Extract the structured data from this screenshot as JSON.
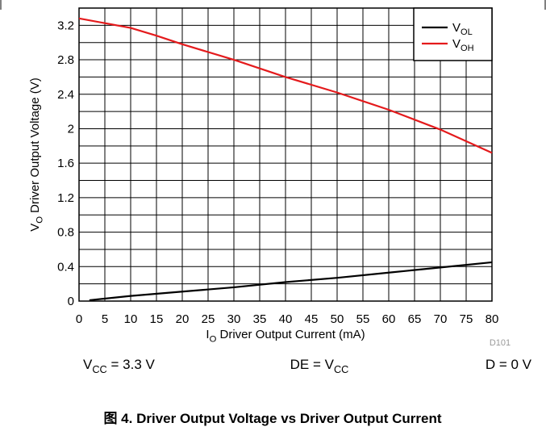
{
  "chart_data": {
    "type": "line",
    "ylabel": [
      {
        "text": "V"
      },
      {
        "text": "O",
        "sub": true
      },
      {
        "text": " Driver Output Voltage (V)"
      }
    ],
    "xlabel": [
      {
        "text": "I"
      },
      {
        "text": "O",
        "sub": true
      },
      {
        "text": " Driver Output Current (mA)"
      }
    ],
    "xlim": [
      0,
      80
    ],
    "xticks": [
      0,
      5,
      10,
      15,
      20,
      25,
      30,
      35,
      40,
      45,
      50,
      55,
      60,
      65,
      70,
      75,
      80
    ],
    "ylim": [
      0,
      3.4
    ],
    "yticks": [
      0,
      0.4,
      0.8,
      1.2,
      1.6,
      2,
      2.4,
      2.8,
      3.2
    ],
    "grid": true,
    "legend": "top-right",
    "series": [
      {
        "name": "V",
        "name_sub": "OL",
        "color": "#000000",
        "x": [
          2,
          10,
          20,
          30,
          40,
          50,
          60,
          70,
          80
        ],
        "values": [
          0.01,
          0.06,
          0.11,
          0.16,
          0.22,
          0.27,
          0.33,
          0.39,
          0.45
        ]
      },
      {
        "name": "V",
        "name_sub": "OH",
        "color": "#e41a1c",
        "x": [
          0,
          10,
          15,
          20,
          30,
          40,
          50,
          60,
          70,
          80
        ],
        "values": [
          3.28,
          3.17,
          3.08,
          2.98,
          2.8,
          2.6,
          2.42,
          2.22,
          1.99,
          1.72
        ]
      }
    ],
    "figure_id": "D101",
    "conditions": [
      [
        {
          "text": "V"
        },
        {
          "text": "CC",
          "sub": true
        },
        {
          "text": " = 3.3 V"
        }
      ],
      [
        {
          "text": "DE = V"
        },
        {
          "text": "CC",
          "sub": true
        }
      ],
      [
        {
          "text": "D = 0 V"
        }
      ]
    ],
    "caption": "图 4. Driver Output Voltage vs Driver Output Current"
  }
}
